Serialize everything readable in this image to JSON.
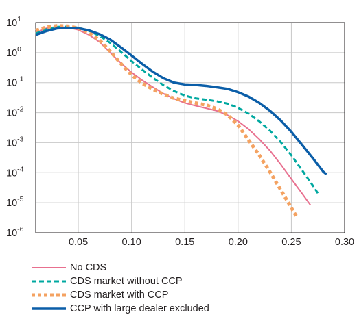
{
  "chart_data": {
    "type": "line",
    "x_ticks": [
      "0.05",
      "0.10",
      "0.15",
      "0.20",
      "0.25",
      "0.30"
    ],
    "y_ticks": [
      {
        "base": "10",
        "exp": "1",
        "value": 10
      },
      {
        "base": "10",
        "exp": "0",
        "value": 1
      },
      {
        "base": "10",
        "exp": "-1",
        "value": 0.1
      },
      {
        "base": "10",
        "exp": "-2",
        "value": 0.01
      },
      {
        "base": "10",
        "exp": "-3",
        "value": 0.001
      },
      {
        "base": "10",
        "exp": "-4",
        "value": 0.0001
      },
      {
        "base": "10",
        "exp": "-5",
        "value": 1e-05
      },
      {
        "base": "10",
        "exp": "-6",
        "value": 1e-06
      }
    ],
    "xlim": [
      0.01,
      0.3
    ],
    "ylim": [
      1e-06,
      10
    ],
    "yscale": "log",
    "grid": true,
    "legend_position": "below",
    "series": [
      {
        "name": "No CDS",
        "color": "#e8708f",
        "style": "solid",
        "x": [
          0.01,
          0.02,
          0.03,
          0.04,
          0.05,
          0.06,
          0.07,
          0.08,
          0.09,
          0.1,
          0.11,
          0.12,
          0.13,
          0.14,
          0.15,
          0.16,
          0.17,
          0.18,
          0.19,
          0.2,
          0.21,
          0.22,
          0.23,
          0.24,
          0.25,
          0.26,
          0.268
        ],
        "y": [
          4.6,
          6.5,
          7.3,
          6.9,
          5.7,
          3.9,
          2.25,
          1.0,
          0.45,
          0.22,
          0.12,
          0.071,
          0.043,
          0.029,
          0.021,
          0.017,
          0.014,
          0.0115,
          0.0083,
          0.0052,
          0.0028,
          0.0013,
          0.00054,
          0.00019,
          6.2e-05,
          2.05e-05,
          8.3e-06
        ]
      },
      {
        "name": "CDS market without CCP",
        "color": "#00a8a0",
        "style": "dashed",
        "x": [
          0.01,
          0.02,
          0.03,
          0.04,
          0.05,
          0.06,
          0.07,
          0.08,
          0.09,
          0.1,
          0.11,
          0.12,
          0.13,
          0.14,
          0.15,
          0.16,
          0.17,
          0.18,
          0.19,
          0.2,
          0.21,
          0.22,
          0.23,
          0.24,
          0.25,
          0.26,
          0.27,
          0.275
        ],
        "y": [
          4.3,
          6.0,
          7.2,
          7.3,
          6.8,
          5.3,
          3.6,
          2.1,
          1.07,
          0.52,
          0.27,
          0.145,
          0.082,
          0.052,
          0.037,
          0.03,
          0.027,
          0.024,
          0.02,
          0.0145,
          0.0092,
          0.0051,
          0.0025,
          0.00105,
          0.00038,
          0.000122,
          3.8e-05,
          2.05e-05
        ]
      },
      {
        "name": "CDS market with CCP",
        "color": "#f4a261",
        "style": "dotted",
        "x": [
          0.01,
          0.02,
          0.03,
          0.04,
          0.05,
          0.06,
          0.07,
          0.08,
          0.09,
          0.1,
          0.11,
          0.12,
          0.13,
          0.14,
          0.15,
          0.16,
          0.17,
          0.18,
          0.19,
          0.2,
          0.21,
          0.22,
          0.23,
          0.24,
          0.25,
          0.255
        ],
        "y": [
          5.5,
          7.0,
          7.8,
          7.6,
          6.5,
          4.6,
          2.6,
          1.1,
          0.43,
          0.18,
          0.095,
          0.06,
          0.041,
          0.03,
          0.025,
          0.021,
          0.018,
          0.0135,
          0.0085,
          0.0038,
          0.0012,
          0.00038,
          0.000105,
          2.7e-05,
          6.8e-06,
          3.4e-06
        ]
      },
      {
        "name": "CCP with large dealer excluded",
        "color": "#0b5ea8",
        "style": "solid",
        "x": [
          0.01,
          0.02,
          0.03,
          0.04,
          0.05,
          0.06,
          0.07,
          0.08,
          0.09,
          0.1,
          0.11,
          0.12,
          0.13,
          0.14,
          0.15,
          0.16,
          0.17,
          0.18,
          0.19,
          0.2,
          0.21,
          0.22,
          0.23,
          0.24,
          0.25,
          0.26,
          0.27,
          0.28,
          0.283
        ],
        "y": [
          3.9,
          5.2,
          6.4,
          6.7,
          6.5,
          5.5,
          4.1,
          2.7,
          1.5,
          0.8,
          0.42,
          0.23,
          0.14,
          0.1,
          0.087,
          0.084,
          0.078,
          0.07,
          0.062,
          0.048,
          0.034,
          0.021,
          0.0115,
          0.0055,
          0.0023,
          0.00085,
          0.00031,
          0.000108,
          8.8e-05
        ]
      }
    ]
  }
}
